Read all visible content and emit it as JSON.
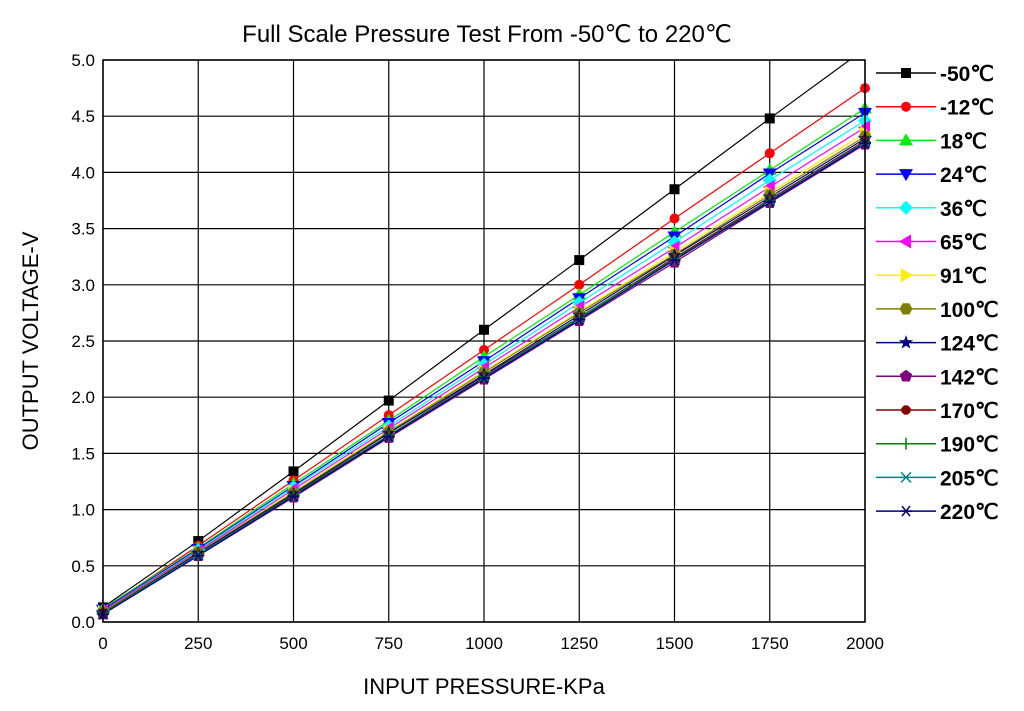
{
  "chart_data": {
    "type": "line",
    "title": "Full Scale Pressure Test From -50℃  to 220℃",
    "xlabel": "INPUT PRESSURE-KPa",
    "ylabel": "OUTPUT VOLTAGE-V",
    "x": [
      0,
      250,
      500,
      750,
      1000,
      1250,
      1500,
      1750,
      2000
    ],
    "xlim": [
      0,
      2000
    ],
    "ylim": [
      0.0,
      5.0
    ],
    "xticks": [
      0,
      250,
      500,
      750,
      1000,
      1250,
      1500,
      1750,
      2000
    ],
    "yticks": [
      "0.0",
      "0.5",
      "1.0",
      "1.5",
      "2.0",
      "2.5",
      "3.0",
      "3.5",
      "4.0",
      "4.5",
      "5.0"
    ],
    "grid": true,
    "legend_position": "right",
    "series": [
      {
        "name": "-50℃",
        "color": "#000000",
        "marker": "square",
        "values": [
          0.13,
          0.72,
          1.34,
          1.97,
          2.6,
          3.22,
          3.85,
          4.48,
          5.1
        ]
      },
      {
        "name": "-12℃",
        "color": "#ff0000",
        "marker": "circle",
        "values": [
          0.11,
          0.68,
          1.26,
          1.84,
          2.42,
          3.0,
          3.59,
          4.17,
          4.75
        ]
      },
      {
        "name": "18℃",
        "color": "#00ee00",
        "marker": "triangle-up",
        "values": [
          0.12,
          0.66,
          1.23,
          1.79,
          2.36,
          2.91,
          3.47,
          4.02,
          4.57
        ]
      },
      {
        "name": "24℃",
        "color": "#0000ff",
        "marker": "triangle-down",
        "values": [
          0.11,
          0.65,
          1.21,
          1.77,
          2.32,
          2.88,
          3.43,
          3.99,
          4.53
        ]
      },
      {
        "name": "36℃",
        "color": "#00ffff",
        "marker": "diamond",
        "values": [
          0.1,
          0.64,
          1.2,
          1.74,
          2.29,
          2.84,
          3.38,
          3.93,
          4.46
        ]
      },
      {
        "name": "65℃",
        "color": "#ff00ff",
        "marker": "triangle-left",
        "values": [
          0.1,
          0.63,
          1.18,
          1.72,
          2.26,
          2.8,
          3.33,
          3.87,
          4.4
        ]
      },
      {
        "name": "91℃",
        "color": "#ffee00",
        "marker": "triangle-right",
        "values": [
          0.09,
          0.62,
          1.16,
          1.7,
          2.23,
          2.76,
          3.29,
          3.82,
          4.35
        ]
      },
      {
        "name": "100℃",
        "color": "#808000",
        "marker": "hexagon",
        "values": [
          0.09,
          0.62,
          1.15,
          1.69,
          2.22,
          2.75,
          3.27,
          3.8,
          4.32
        ]
      },
      {
        "name": "124℃",
        "color": "#000080",
        "marker": "star",
        "values": [
          0.08,
          0.61,
          1.14,
          1.68,
          2.2,
          2.73,
          3.26,
          3.78,
          4.3
        ]
      },
      {
        "name": "142℃",
        "color": "#800080",
        "marker": "pentagon",
        "values": [
          0.07,
          0.59,
          1.11,
          1.64,
          2.16,
          2.68,
          3.2,
          3.73,
          4.25
        ]
      },
      {
        "name": "170℃",
        "color": "#800000",
        "marker": "octagon",
        "values": [
          0.08,
          0.6,
          1.13,
          1.66,
          2.19,
          2.71,
          3.24,
          3.76,
          4.28
        ]
      },
      {
        "name": "190℃",
        "color": "#008000",
        "marker": "plus",
        "values": [
          0.08,
          0.6,
          1.13,
          1.66,
          2.18,
          2.71,
          3.23,
          3.75,
          4.27
        ]
      },
      {
        "name": "205℃",
        "color": "#008080",
        "marker": "cross",
        "values": [
          0.07,
          0.6,
          1.12,
          1.65,
          2.18,
          2.7,
          3.22,
          3.75,
          4.27
        ]
      },
      {
        "name": "220℃",
        "color": "#000080",
        "marker": "asterisk",
        "values": [
          0.07,
          0.59,
          1.12,
          1.65,
          2.17,
          2.69,
          3.22,
          3.74,
          4.26
        ]
      }
    ]
  }
}
